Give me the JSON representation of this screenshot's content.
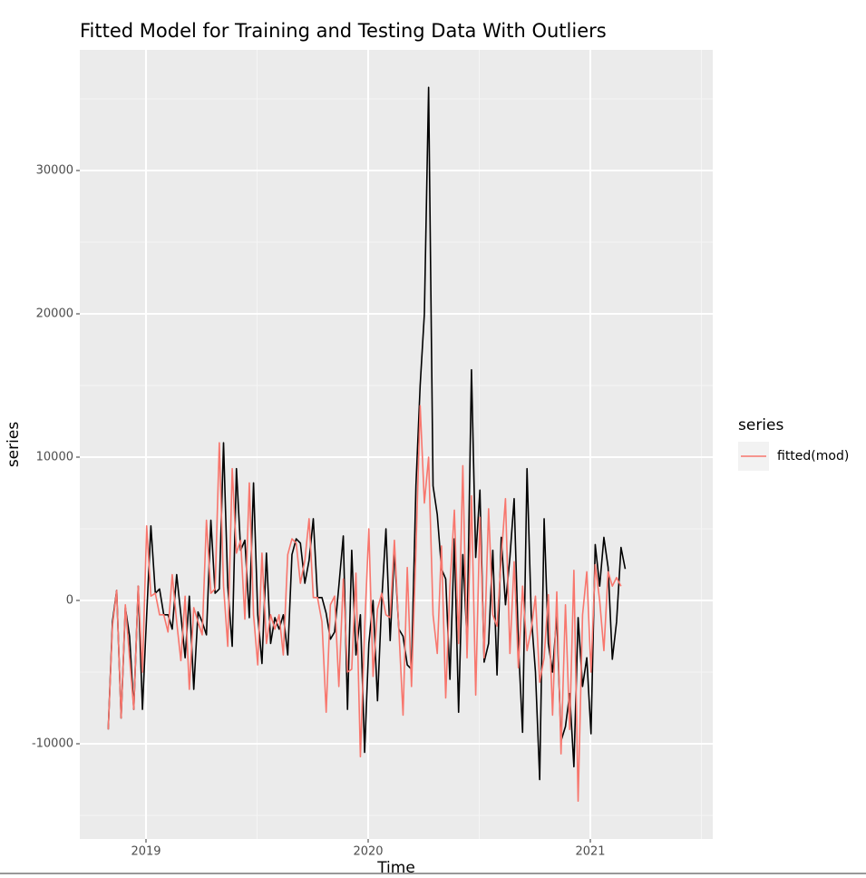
{
  "chart_data": {
    "type": "line",
    "title": "Fitted Model for Training and Testing Data With Outliers",
    "x_label": "Time",
    "y_label": "series",
    "legend_title": "series",
    "legend_position": "right",
    "grid": true,
    "xlim": [
      2018.702,
      2021.551
    ],
    "ylim": [
      -16646,
      38418
    ],
    "xticks": [
      2019,
      2020,
      2021
    ],
    "yticks": [
      -10000,
      0,
      10000,
      20000,
      30000
    ],
    "x": [
      2018.83,
      2018.849,
      2018.868,
      2018.888,
      2018.907,
      2018.926,
      2018.945,
      2018.965,
      2018.984,
      2019.003,
      2019.022,
      2019.042,
      2019.061,
      2019.08,
      2019.099,
      2019.118,
      2019.138,
      2019.157,
      2019.176,
      2019.195,
      2019.215,
      2019.234,
      2019.253,
      2019.272,
      2019.292,
      2019.311,
      2019.33,
      2019.349,
      2019.368,
      2019.388,
      2019.407,
      2019.426,
      2019.445,
      2019.465,
      2019.484,
      2019.503,
      2019.522,
      2019.542,
      2019.561,
      2019.58,
      2019.599,
      2019.618,
      2019.638,
      2019.657,
      2019.676,
      2019.695,
      2019.715,
      2019.734,
      2019.753,
      2019.772,
      2019.792,
      2019.811,
      2019.83,
      2019.849,
      2019.868,
      2019.888,
      2019.907,
      2019.926,
      2019.945,
      2019.965,
      2019.984,
      2020.003,
      2020.022,
      2020.042,
      2020.061,
      2020.08,
      2020.099,
      2020.118,
      2020.138,
      2020.157,
      2020.176,
      2020.195,
      2020.215,
      2020.234,
      2020.253,
      2020.272,
      2020.292,
      2020.311,
      2020.33,
      2020.349,
      2020.368,
      2020.388,
      2020.407,
      2020.426,
      2020.445,
      2020.465,
      2020.484,
      2020.503,
      2020.522,
      2020.542,
      2020.561,
      2020.58,
      2020.599,
      2020.618,
      2020.638,
      2020.657,
      2020.676,
      2020.695,
      2020.715,
      2020.734,
      2020.753,
      2020.772,
      2020.792,
      2020.811,
      2020.83,
      2020.849,
      2020.868,
      2020.888,
      2020.907,
      2020.926,
      2020.945,
      2020.965,
      2020.984,
      2021.003,
      2021.022,
      2021.042,
      2021.061,
      2021.08,
      2021.099,
      2021.118,
      2021.138,
      2021.157
    ],
    "series": [
      {
        "color": "#000000",
        "values": [
          -9000,
          -1500,
          700,
          -8200,
          -500,
          -2500,
          -7600,
          1000,
          -7600,
          -1000,
          5200,
          500,
          800,
          -1000,
          -1000,
          -2000,
          1800,
          -1000,
          -4000,
          300,
          -6200,
          -800,
          -1500,
          -2400,
          5600,
          500,
          800,
          11000,
          1000,
          -3200,
          9200,
          3500,
          4200,
          -1200,
          8200,
          -1000,
          -4400,
          3300,
          -3000,
          -1200,
          -2000,
          -1000,
          -3800,
          3200,
          4300,
          4000,
          1200,
          2800,
          5700,
          200,
          200,
          -900,
          -2700,
          -2200,
          1000,
          4500,
          -7600,
          3500,
          -3800,
          -1000,
          -10600,
          -3000,
          0,
          -7000,
          0,
          5000,
          -2800,
          3500,
          -2000,
          -2500,
          -4500,
          -4800,
          8000,
          15000,
          20000,
          35800,
          8000,
          6000,
          2200,
          1500,
          -5500,
          4300,
          -7800,
          3200,
          -2700,
          16100,
          3000,
          7700,
          -4300,
          -3000,
          3500,
          -5200,
          4400,
          -300,
          3000,
          7100,
          -3000,
          -9200,
          9200,
          -1000,
          -5000,
          -12500,
          5700,
          -3000,
          -5000,
          -1000,
          -9800,
          -8800,
          -6500,
          -11600,
          -1200,
          -6000,
          -4000,
          -9300,
          3900,
          1000,
          4400,
          2300,
          -4100,
          -1500,
          3700,
          2200
        ]
      },
      {
        "name": "fitted(mod)",
        "color": "#f8766d",
        "values": [
          -9000,
          -1800,
          700,
          -8200,
          -300,
          -4000,
          -7600,
          1000,
          -5000,
          5200,
          300,
          500,
          -1000,
          -1000,
          -2200,
          1800,
          -1500,
          -4200,
          300,
          -6200,
          -500,
          -1500,
          -2400,
          5600,
          500,
          800,
          11000,
          1000,
          -3200,
          9200,
          3300,
          4200,
          -1300,
          8200,
          -1000,
          -4500,
          3300,
          -3000,
          -1000,
          -2000,
          -1000,
          -3800,
          3200,
          4300,
          4000,
          1200,
          2800,
          5700,
          200,
          200,
          -1500,
          -7800,
          -300,
          300,
          -6000,
          1500,
          -5000,
          -4800,
          1900,
          -10900,
          -2000,
          5000,
          -5300,
          -600,
          500,
          -1000,
          -1200,
          4200,
          -2000,
          -8000,
          2300,
          -6000,
          3500,
          13600,
          6800,
          10000,
          -1000,
          -3700,
          3800,
          -6800,
          1000,
          6300,
          -3000,
          9400,
          -4000,
          7300,
          -6600,
          5800,
          -4000,
          6400,
          -1000,
          -1800,
          3000,
          7100,
          -3700,
          2700,
          -4700,
          1000,
          -3500,
          -2000,
          300,
          -5700,
          -4000,
          400,
          -8000,
          600,
          -10700,
          -300,
          -9000,
          2100,
          -14000,
          -1000,
          2000,
          -5000,
          2500,
          0,
          -3500,
          2000,
          1000,
          1600,
          1000,
          null
        ]
      }
    ]
  }
}
